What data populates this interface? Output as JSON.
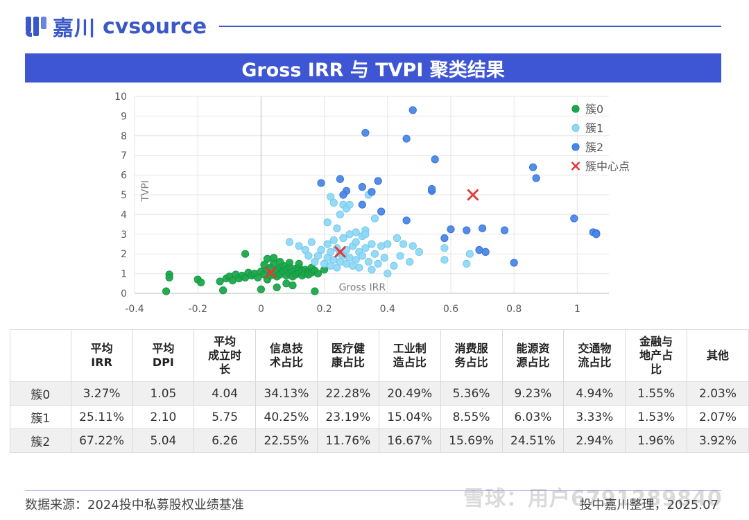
{
  "header": {
    "brand_cn": "嘉川",
    "brand_en": "cvsource",
    "title": "Gross IRR 与 TVPI 聚类结果"
  },
  "colors": {
    "brand": "#3e56d3",
    "cluster0": "#1aa84a",
    "cluster1": "#8fd8f5",
    "cluster2": "#4a86e8",
    "center": "#e53935"
  },
  "chart_data": {
    "type": "scatter",
    "xlabel": "Gross IRR",
    "ylabel": "TVPI",
    "xlim": [
      -0.4,
      1.1
    ],
    "ylim": [
      0,
      10
    ],
    "x_ticks": [
      "-0.4",
      "-0.2",
      "0",
      "0.2",
      "0.4",
      "0.6",
      "0.8",
      "1"
    ],
    "y_ticks": [
      "0",
      "1",
      "2",
      "3",
      "4",
      "5",
      "6",
      "7",
      "8",
      "9",
      "10"
    ],
    "grid": true,
    "legend_position": "top-right",
    "legend": [
      "簇0",
      "簇1",
      "簇2",
      "簇中心点"
    ],
    "series": [
      {
        "name": "簇0",
        "points": [
          [
            -0.29,
            0.95
          ],
          [
            -0.29,
            0.8
          ],
          [
            -0.3,
            0.1
          ],
          [
            -0.2,
            0.7
          ],
          [
            -0.19,
            0.55
          ],
          [
            -0.13,
            0.6
          ],
          [
            -0.11,
            0.75
          ],
          [
            -0.1,
            0.85
          ],
          [
            -0.09,
            0.65
          ],
          [
            -0.08,
            0.95
          ],
          [
            -0.07,
            0.75
          ],
          [
            -0.06,
            0.9
          ],
          [
            -0.05,
            0.8
          ],
          [
            -0.03,
            0.95
          ],
          [
            -0.12,
            0.15
          ],
          [
            -0.05,
            2.0
          ],
          [
            -0.04,
            1.05
          ],
          [
            -0.03,
            0.9
          ],
          [
            -0.02,
            1.0
          ],
          [
            -0.01,
            0.8
          ],
          [
            0.0,
            1.1
          ],
          [
            0.0,
            0.2
          ],
          [
            0.01,
            0.95
          ],
          [
            0.02,
            1.2
          ],
          [
            0.02,
            0.7
          ],
          [
            0.03,
            1.3
          ],
          [
            0.03,
            0.9
          ],
          [
            0.04,
            1.0
          ],
          [
            0.04,
            1.5
          ],
          [
            0.05,
            0.85
          ],
          [
            0.05,
            1.15
          ],
          [
            0.06,
            1.3
          ],
          [
            0.06,
            0.95
          ],
          [
            0.07,
            1.1
          ],
          [
            0.07,
            1.4
          ],
          [
            0.08,
            0.9
          ],
          [
            0.08,
            1.2
          ],
          [
            0.09,
            1.0
          ],
          [
            0.09,
            1.35
          ],
          [
            0.1,
            1.1
          ],
          [
            0.1,
            0.85
          ],
          [
            0.11,
            1.25
          ],
          [
            0.11,
            0.95
          ],
          [
            0.12,
            1.05
          ],
          [
            0.12,
            1.3
          ],
          [
            0.13,
            0.9
          ],
          [
            0.13,
            1.15
          ],
          [
            0.14,
            1.2
          ],
          [
            0.14,
            1.0
          ],
          [
            0.15,
            1.1
          ],
          [
            0.15,
            0.95
          ],
          [
            0.16,
            1.3
          ],
          [
            0.16,
            1.05
          ],
          [
            0.17,
            1.15
          ],
          [
            0.18,
            1.0
          ],
          [
            0.02,
            1.75
          ],
          [
            0.04,
            1.8
          ],
          [
            0.08,
            0.5
          ],
          [
            0.1,
            0.4
          ],
          [
            0.05,
            0.3
          ],
          [
            0.17,
            0.1
          ],
          [
            0.01,
            1.45
          ],
          [
            0.06,
            1.6
          ],
          [
            0.09,
            1.55
          ],
          [
            0.12,
            1.5
          ],
          [
            0.2,
            1.2
          ]
        ]
      },
      {
        "name": "簇1",
        "points": [
          [
            0.17,
            1.6
          ],
          [
            0.18,
            1.9
          ],
          [
            0.19,
            2.2
          ],
          [
            0.2,
            1.5
          ],
          [
            0.21,
            2.5
          ],
          [
            0.21,
            1.8
          ],
          [
            0.22,
            2.1
          ],
          [
            0.22,
            1.4
          ],
          [
            0.23,
            2.7
          ],
          [
            0.23,
            1.7
          ],
          [
            0.24,
            2.3
          ],
          [
            0.24,
            1.3
          ],
          [
            0.25,
            2.0
          ],
          [
            0.25,
            1.6
          ],
          [
            0.26,
            2.8
          ],
          [
            0.26,
            1.9
          ],
          [
            0.27,
            2.2
          ],
          [
            0.27,
            1.5
          ],
          [
            0.28,
            3.0
          ],
          [
            0.28,
            1.8
          ],
          [
            0.29,
            2.4
          ],
          [
            0.29,
            1.4
          ],
          [
            0.3,
            2.6
          ],
          [
            0.3,
            1.7
          ],
          [
            0.31,
            2.1
          ],
          [
            0.31,
            1.3
          ],
          [
            0.32,
            2.9
          ],
          [
            0.32,
            1.9
          ],
          [
            0.33,
            2.3
          ],
          [
            0.33,
            3.2
          ],
          [
            0.34,
            1.6
          ],
          [
            0.35,
            2.5
          ],
          [
            0.35,
            1.2
          ],
          [
            0.36,
            2.0
          ],
          [
            0.37,
            1.5
          ],
          [
            0.38,
            2.4
          ],
          [
            0.39,
            1.8
          ],
          [
            0.4,
            2.5
          ],
          [
            0.42,
            1.4
          ],
          [
            0.43,
            2.8
          ],
          [
            0.44,
            1.9
          ],
          [
            0.45,
            2.5
          ],
          [
            0.47,
            1.6
          ],
          [
            0.48,
            2.4
          ],
          [
            0.5,
            2.1
          ],
          [
            0.21,
            3.6
          ],
          [
            0.22,
            4.9
          ],
          [
            0.23,
            4.6
          ],
          [
            0.25,
            4.0
          ],
          [
            0.26,
            4.5
          ],
          [
            0.27,
            4.3
          ],
          [
            0.28,
            4.5
          ],
          [
            0.24,
            3.3
          ],
          [
            0.3,
            3.1
          ],
          [
            0.33,
            3.0
          ],
          [
            0.36,
            3.8
          ],
          [
            0.34,
            5.0
          ],
          [
            0.58,
            2.3
          ],
          [
            0.58,
            1.7
          ],
          [
            0.65,
            1.5
          ],
          [
            0.66,
            2.0
          ],
          [
            0.4,
            1.0
          ],
          [
            0.09,
            2.6
          ],
          [
            0.12,
            2.4
          ],
          [
            0.14,
            2.2
          ],
          [
            0.15,
            1.9
          ],
          [
            0.16,
            2.6
          ]
        ]
      },
      {
        "name": "簇2",
        "points": [
          [
            0.48,
            9.3
          ],
          [
            0.33,
            8.15
          ],
          [
            0.46,
            7.85
          ],
          [
            0.55,
            6.8
          ],
          [
            0.25,
            5.8
          ],
          [
            0.19,
            5.6
          ],
          [
            0.37,
            5.7
          ],
          [
            0.32,
            5.4
          ],
          [
            0.27,
            5.2
          ],
          [
            0.26,
            5.0
          ],
          [
            0.35,
            5.15
          ],
          [
            0.32,
            4.5
          ],
          [
            0.38,
            4.15
          ],
          [
            0.46,
            3.7
          ],
          [
            0.54,
            5.2
          ],
          [
            0.54,
            5.3
          ],
          [
            0.58,
            2.8
          ],
          [
            0.6,
            3.25
          ],
          [
            0.65,
            3.2
          ],
          [
            0.7,
            3.3
          ],
          [
            0.69,
            2.2
          ],
          [
            0.71,
            2.1
          ],
          [
            0.77,
            3.2
          ],
          [
            0.8,
            1.55
          ],
          [
            0.86,
            6.4
          ],
          [
            0.87,
            5.85
          ],
          [
            0.99,
            3.8
          ],
          [
            1.05,
            3.1
          ],
          [
            1.06,
            3.05
          ],
          [
            1.06,
            3.0
          ]
        ]
      },
      {
        "name": "簇中心点",
        "points": [
          [
            0.03,
            1.05
          ],
          [
            0.25,
            2.1
          ],
          [
            0.67,
            5.0
          ]
        ]
      }
    ]
  },
  "table": {
    "headers": [
      "",
      "平均\nIRR",
      "平均\nDPI",
      "平均\n成立时\n长",
      "信息技\n术占比",
      "医疗健\n康占比",
      "工业制\n造占比",
      "消费服\n务占比",
      "能源资\n源占比",
      "交通物\n流占比",
      "金融与\n地产占\n比",
      "其他"
    ],
    "rows": [
      [
        "簇0",
        "3.27%",
        "1.05",
        "4.04",
        "34.13%",
        "22.28%",
        "20.49%",
        "5.36%",
        "9.23%",
        "4.94%",
        "1.55%",
        "2.03%"
      ],
      [
        "簇1",
        "25.11%",
        "2.10",
        "5.75",
        "40.25%",
        "23.19%",
        "15.04%",
        "8.55%",
        "6.03%",
        "3.33%",
        "1.53%",
        "2.07%"
      ],
      [
        "簇2",
        "67.22%",
        "5.04",
        "6.26",
        "22.55%",
        "11.76%",
        "16.67%",
        "15.69%",
        "24.51%",
        "2.94%",
        "1.96%",
        "3.92%"
      ]
    ]
  },
  "footer": {
    "source": "数据来源：2024投中私募股权业绩基准",
    "credit": "投中嘉川整理，2025.07",
    "watermark": "雪球：用户6791289840"
  }
}
